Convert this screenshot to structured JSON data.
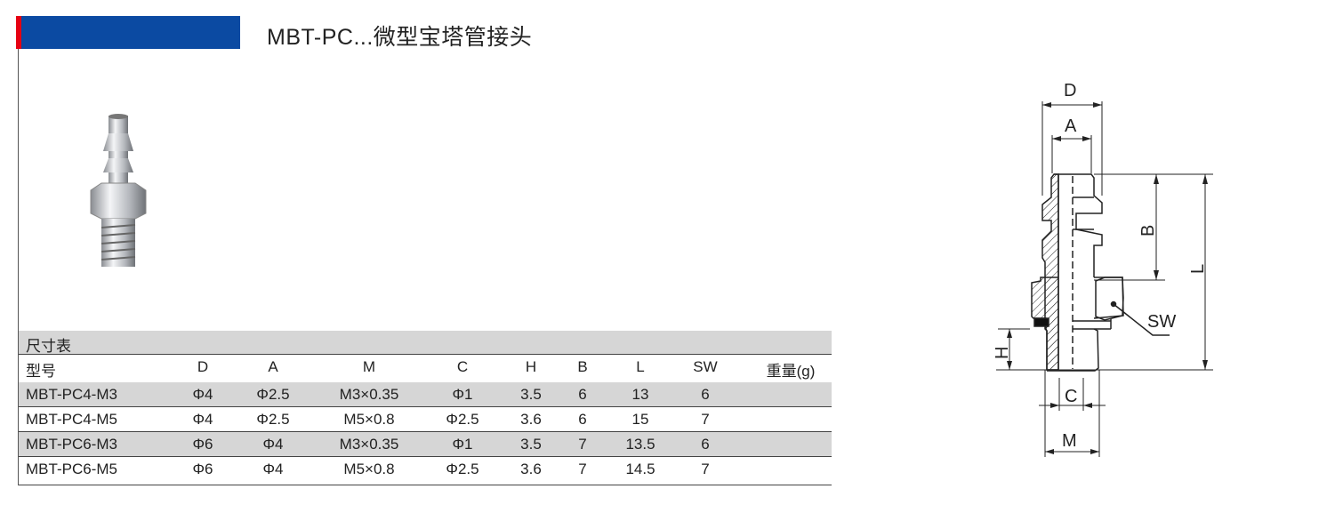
{
  "header": {
    "title": "MBT-PC...微型宝塔管接头",
    "accent_red": "#e60012",
    "accent_blue": "#0b4aa2"
  },
  "table": {
    "caption": "尺寸表",
    "columns": [
      "型号",
      "D",
      "A",
      "M",
      "C",
      "H",
      "B",
      "L",
      "SW",
      "重量(g)"
    ],
    "rows": [
      [
        "MBT-PC4-M3",
        "Φ4",
        "Φ2.5",
        "M3×0.35",
        "Φ1",
        "3.5",
        "6",
        "13",
        "6",
        ""
      ],
      [
        "MBT-PC4-M5",
        "Φ4",
        "Φ2.5",
        "M5×0.8",
        "Φ2.5",
        "3.6",
        "6",
        "15",
        "7",
        ""
      ],
      [
        "MBT-PC6-M3",
        "Φ6",
        "Φ4",
        "M3×0.35",
        "Φ1",
        "3.5",
        "7",
        "13.5",
        "6",
        ""
      ],
      [
        "MBT-PC6-M5",
        "Φ6",
        "Φ4",
        "M5×0.8",
        "Φ2.5",
        "3.6",
        "7",
        "14.5",
        "7",
        ""
      ]
    ]
  },
  "drawing": {
    "labels": {
      "D": "D",
      "A": "A",
      "B": "B",
      "L": "L",
      "SW": "SW",
      "H": "H",
      "C": "C",
      "M": "M"
    }
  }
}
